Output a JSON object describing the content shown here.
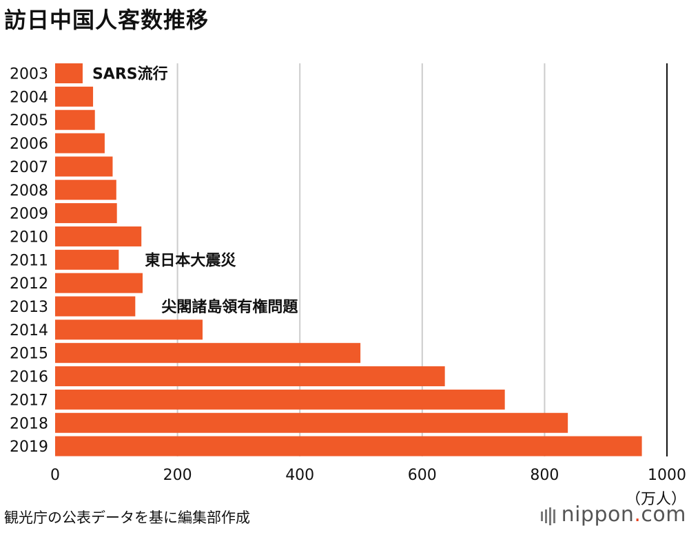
{
  "title": "訪日中国人客数推移",
  "source": "観光庁の公表データを基に編集部作成",
  "brand": {
    "name": "nippon",
    "dot": ".",
    "tld": "com"
  },
  "colors": {
    "bar": "#f05a28",
    "grid": "#cccccc",
    "axis": "#111111",
    "brand_dot": "#e8401c"
  },
  "chart_data": {
    "type": "bar",
    "orientation": "horizontal",
    "title": "訪日中国人客数推移",
    "unit_label": "（万人）",
    "categories": [
      "2003",
      "2004",
      "2005",
      "2006",
      "2007",
      "2008",
      "2009",
      "2010",
      "2011",
      "2012",
      "2013",
      "2014",
      "2015",
      "2016",
      "2017",
      "2018",
      "2019"
    ],
    "values": [
      45,
      62,
      65,
      81,
      94,
      100,
      101,
      141,
      104,
      143,
      131,
      241,
      499,
      637,
      735,
      838,
      959
    ],
    "xlim": [
      0,
      1000
    ],
    "xticks": [
      0,
      200,
      400,
      600,
      800,
      1000
    ],
    "grid": true,
    "annotations": [
      {
        "category": "2003",
        "text": "SARS流行"
      },
      {
        "category": "2011",
        "text": "東日本大震災"
      },
      {
        "category": "2013",
        "text": "尖閣諸島領有権問題"
      }
    ]
  }
}
